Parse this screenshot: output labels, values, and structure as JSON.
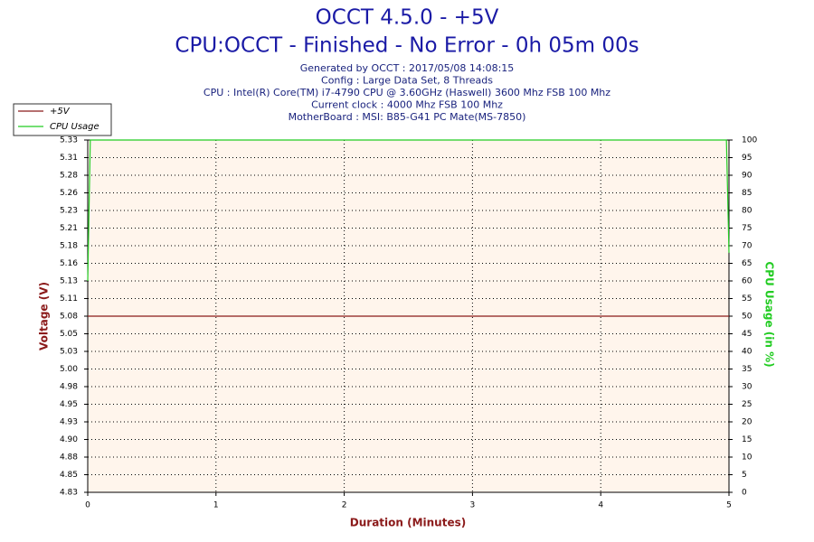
{
  "chart_data": {
    "type": "line",
    "title": "OCCT 4.5.0 - +5V",
    "subtitle": "CPU:OCCT - Finished - No Error - 0h 05m 00s",
    "info": [
      "Generated by OCCT : 2017/05/08 14:08:15",
      "Config : Large Data Set, 8 Threads",
      "CPU : Intel(R) Core(TM) i7-4790 CPU @ 3.60GHz (Haswell) 3600 Mhz FSB 100 Mhz",
      "Current clock : 4000 Mhz FSB 100 Mhz",
      "MotherBoard : MSI: B85-G41 PC Mate(MS-7850)"
    ],
    "xlabel": "Duration (Minutes)",
    "ylabel": "Voltage (V)",
    "y2label": "CPU Usage (in %)",
    "x": [
      0,
      0.02,
      4.98,
      5
    ],
    "xlim": [
      0,
      5
    ],
    "xticks": [
      0,
      1,
      2,
      3,
      4,
      5
    ],
    "ylim": [
      4.83,
      5.33
    ],
    "yticks": [
      4.83,
      {
        "value": 4.855,
        "label": "4.85"
      },
      4.88,
      {
        "value": 4.905,
        "label": "4.90"
      },
      4.93,
      {
        "value": 4.955,
        "label": "4.95"
      },
      4.98,
      {
        "value": 5.005,
        "label": "5.00"
      },
      5.03,
      {
        "value": 5.055,
        "label": "5.05"
      },
      5.08,
      {
        "value": 5.105,
        "label": "5.11"
      },
      5.13,
      {
        "value": 5.155,
        "label": "5.16"
      },
      5.18,
      {
        "value": 5.205,
        "label": "5.21"
      },
      5.23,
      {
        "value": 5.255,
        "label": "5.26"
      },
      5.28,
      {
        "value": 5.305,
        "label": "5.31"
      },
      5.33
    ],
    "y2lim": [
      0,
      100
    ],
    "y2ticks": [
      0,
      5,
      10,
      15,
      20,
      25,
      30,
      35,
      40,
      45,
      50,
      55,
      60,
      65,
      70,
      75,
      80,
      85,
      90,
      95,
      100
    ],
    "grid": true,
    "legend": "top-left",
    "series": [
      {
        "name": "+5V",
        "color": "#8b1a1a",
        "values": [
          5.08,
          5.08,
          5.08,
          5.08
        ]
      },
      {
        "name": "CPU Usage",
        "color": "#22cc22",
        "values": [
          60,
          100,
          100,
          68
        ],
        "axis": "y2"
      }
    ]
  }
}
